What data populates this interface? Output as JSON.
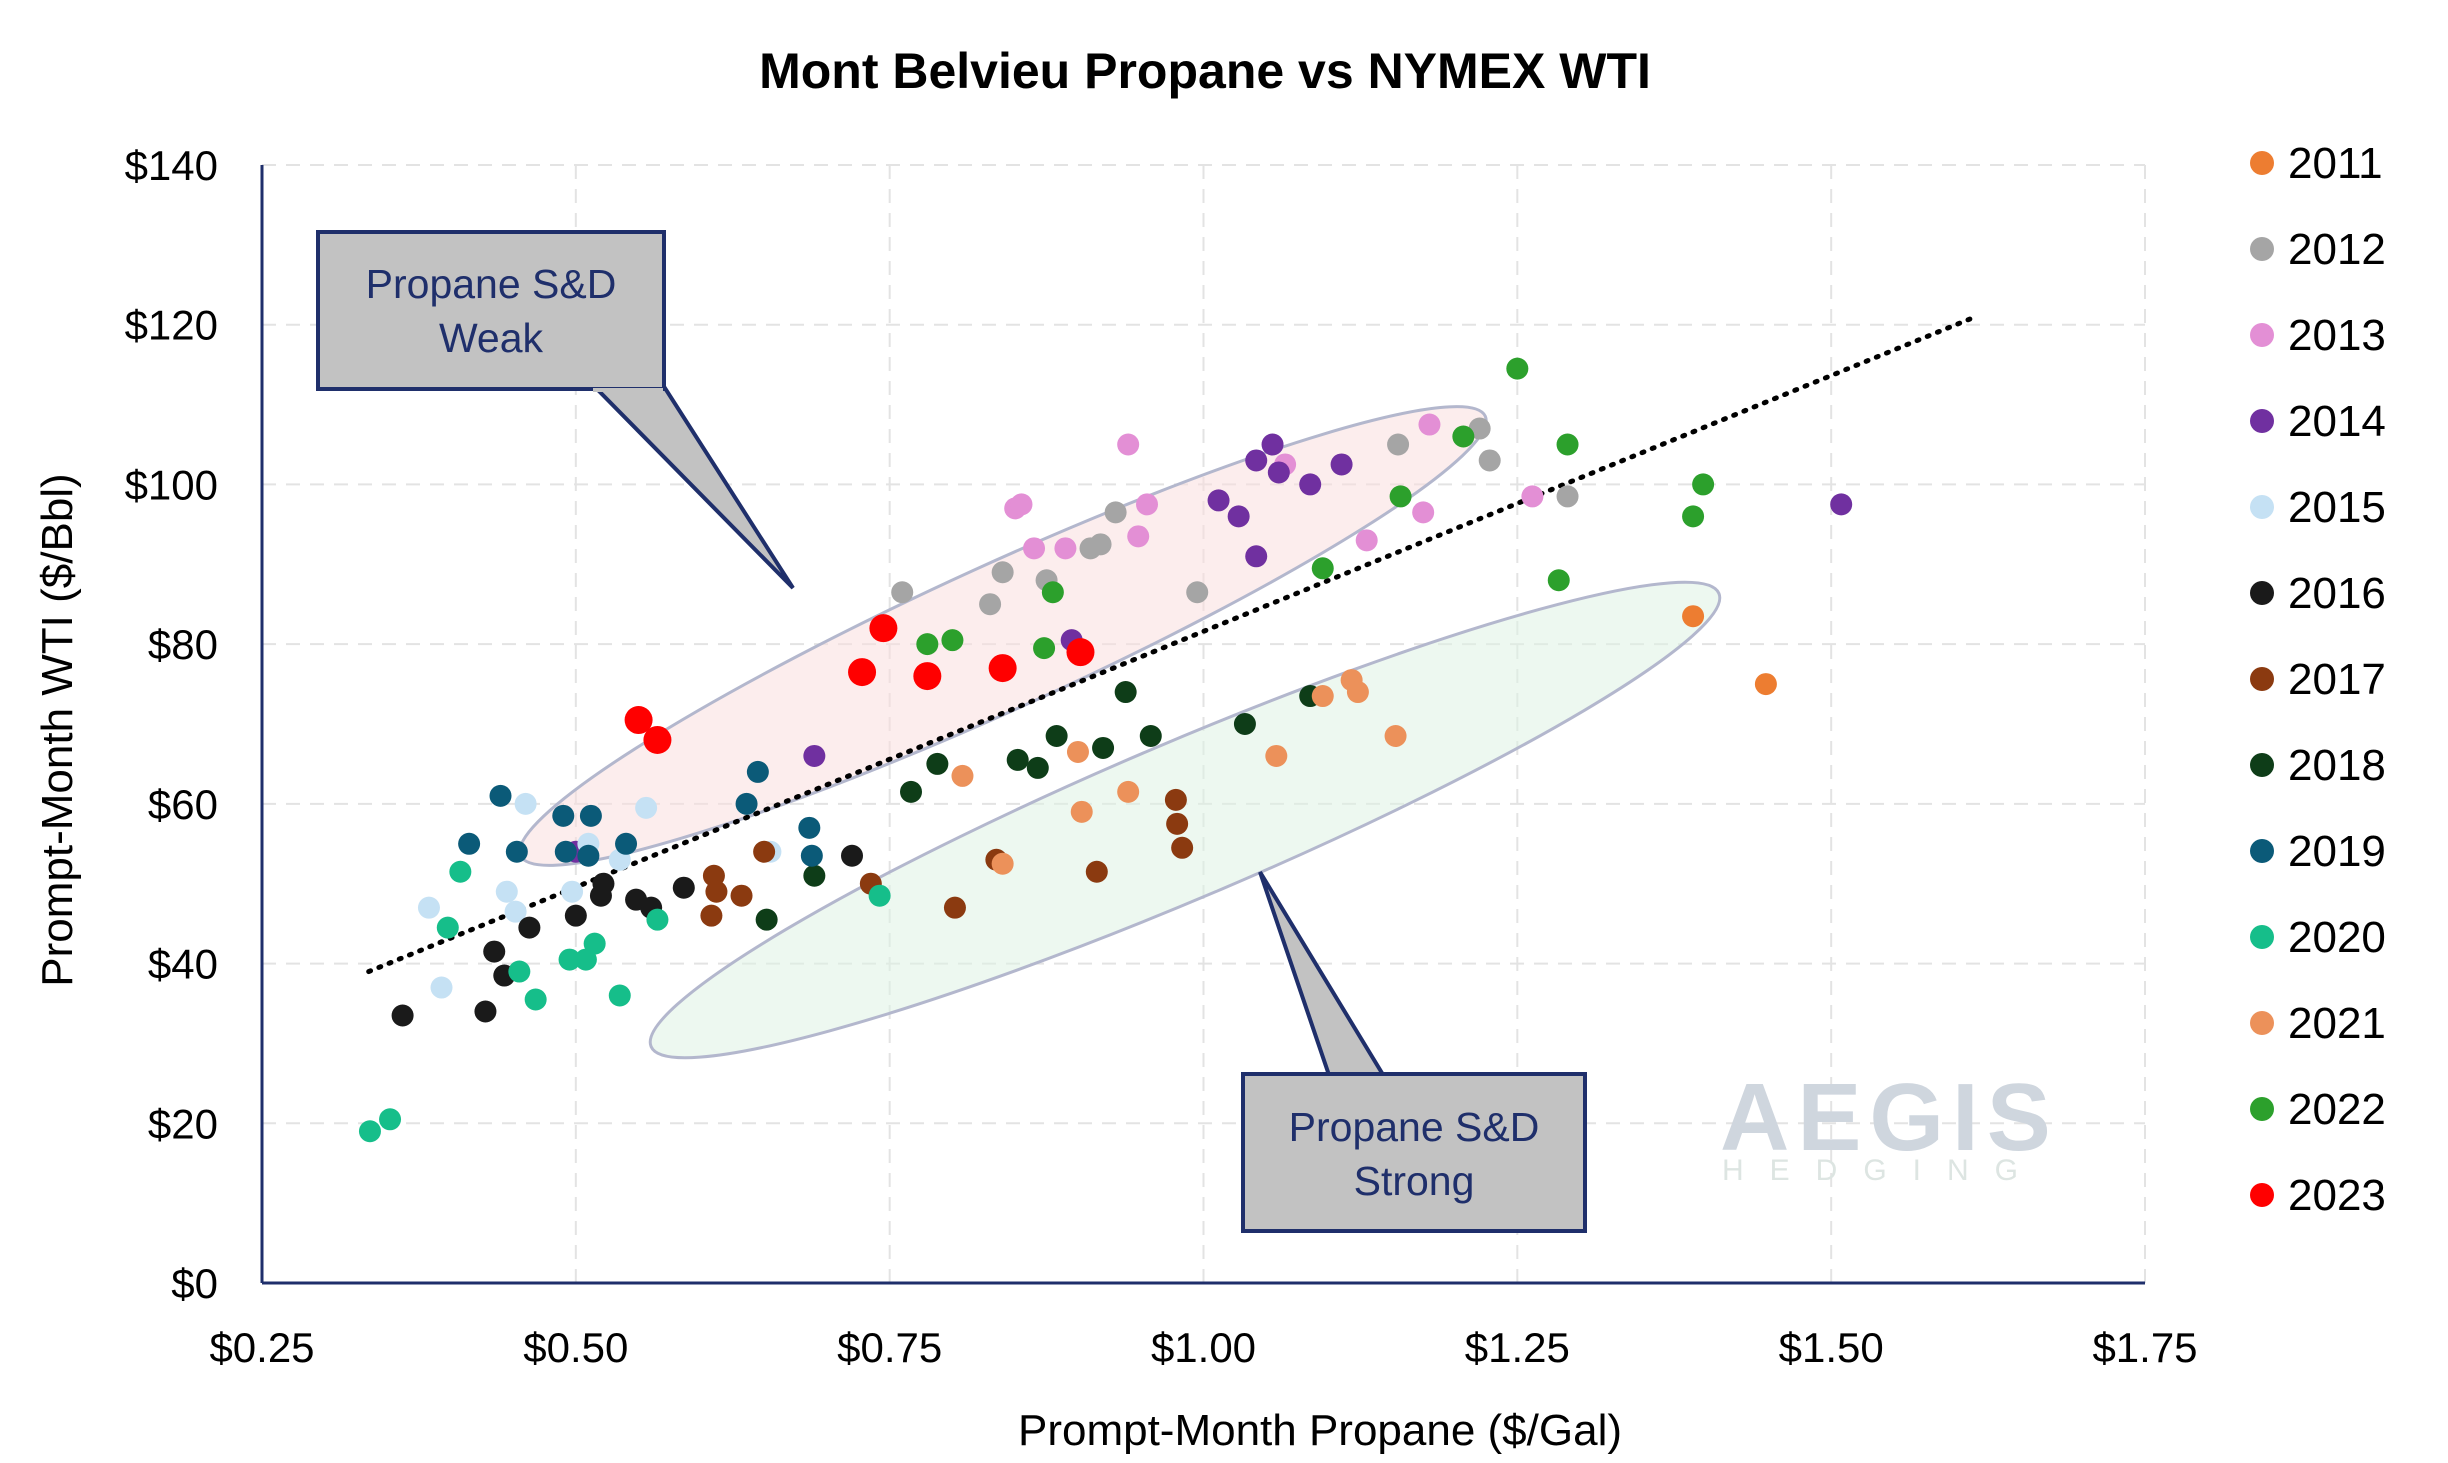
{
  "chart_data": {
    "type": "scatter",
    "title": "Mont Belvieu Propane vs NYMEX WTI",
    "xlabel": "Prompt-Month Propane ($/Gal)",
    "ylabel": "Prompt-Month WTI ($/Bbl)",
    "xlim": [
      0.25,
      1.75
    ],
    "ylim": [
      0,
      140
    ],
    "x_ticks": [
      "$0.25",
      "$0.50",
      "$0.75",
      "$1.00",
      "$1.25",
      "$1.50",
      "$1.75"
    ],
    "y_ticks": [
      "$0",
      "$20",
      "$40",
      "$60",
      "$80",
      "$100",
      "$120",
      "$140"
    ],
    "grid": true,
    "legend_position": "right",
    "trendline": {
      "style": "dotted",
      "from": [
        0.335,
        39
      ],
      "to": [
        1.615,
        121
      ]
    },
    "annotations": [
      {
        "text_lines": [
          "Propane S&D",
          "Weak"
        ],
        "color": "#f9dede"
      },
      {
        "text_lines": [
          "Propane S&D",
          "Strong"
        ],
        "color": "#def2e4"
      }
    ],
    "watermark": {
      "main": "AEGIS",
      "sub": "HEDGING"
    },
    "series": [
      {
        "name": "2011",
        "color": "#ed7d31",
        "points": [
          [
            1.39,
            83.5
          ],
          [
            1.448,
            75
          ]
        ]
      },
      {
        "name": "2012",
        "color": "#a5a5a5",
        "points": [
          [
            0.76,
            86.5
          ],
          [
            0.83,
            85
          ],
          [
            0.84,
            89
          ],
          [
            0.875,
            88
          ],
          [
            0.91,
            92
          ],
          [
            0.918,
            92.5
          ],
          [
            0.93,
            96.5
          ],
          [
            0.995,
            86.5
          ],
          [
            1.155,
            105
          ],
          [
            1.22,
            107
          ],
          [
            1.228,
            103
          ],
          [
            1.29,
            98.5
          ]
        ]
      },
      {
        "name": "2013",
        "color": "#e38fd5",
        "points": [
          [
            0.85,
            97
          ],
          [
            0.855,
            97.5
          ],
          [
            0.865,
            92
          ],
          [
            0.89,
            92
          ],
          [
            0.94,
            105
          ],
          [
            0.948,
            93.5
          ],
          [
            0.955,
            97.5
          ],
          [
            1.065,
            102.5
          ],
          [
            1.13,
            93
          ],
          [
            1.175,
            96.5
          ],
          [
            1.18,
            107.5
          ],
          [
            1.262,
            98.5
          ]
        ]
      },
      {
        "name": "2014",
        "color": "#7030a0",
        "points": [
          [
            0.5,
            54
          ],
          [
            0.69,
            66
          ],
          [
            0.895,
            80.5
          ],
          [
            1.012,
            98
          ],
          [
            1.028,
            96
          ],
          [
            1.042,
            91
          ],
          [
            1.042,
            103
          ],
          [
            1.055,
            105
          ],
          [
            1.06,
            101.5
          ],
          [
            1.085,
            100
          ],
          [
            1.11,
            102.5
          ],
          [
            1.508,
            97.5
          ]
        ]
      },
      {
        "name": "2015",
        "color": "#c5e1f4",
        "points": [
          [
            0.383,
            47
          ],
          [
            0.393,
            37
          ],
          [
            0.445,
            49
          ],
          [
            0.452,
            46.5
          ],
          [
            0.46,
            60
          ],
          [
            0.497,
            49
          ],
          [
            0.51,
            55
          ],
          [
            0.535,
            53
          ],
          [
            0.556,
            59.5
          ],
          [
            0.655,
            54
          ]
        ]
      },
      {
        "name": "2016",
        "color": "#1a1a1a",
        "points": [
          [
            0.362,
            33.5
          ],
          [
            0.428,
            34
          ],
          [
            0.435,
            41.5
          ],
          [
            0.443,
            38.5
          ],
          [
            0.463,
            44.5
          ],
          [
            0.5,
            46
          ],
          [
            0.52,
            48.5
          ],
          [
            0.522,
            50
          ],
          [
            0.548,
            48
          ],
          [
            0.56,
            47
          ],
          [
            0.586,
            49.5
          ],
          [
            0.72,
            53.5
          ]
        ]
      },
      {
        "name": "2017",
        "color": "#8b3a10",
        "points": [
          [
            0.608,
            46
          ],
          [
            0.61,
            51
          ],
          [
            0.612,
            49
          ],
          [
            0.632,
            48.5
          ],
          [
            0.65,
            54
          ],
          [
            0.735,
            50
          ],
          [
            0.802,
            47
          ],
          [
            0.835,
            53
          ],
          [
            0.915,
            51.5
          ],
          [
            0.978,
            60.5
          ],
          [
            0.979,
            57.5
          ],
          [
            0.983,
            54.5
          ]
        ]
      },
      {
        "name": "2018",
        "color": "#0e3d18",
        "points": [
          [
            0.652,
            45.5
          ],
          [
            0.69,
            51
          ],
          [
            0.767,
            61.5
          ],
          [
            0.788,
            65
          ],
          [
            0.852,
            65.5
          ],
          [
            0.868,
            64.5
          ],
          [
            0.883,
            68.5
          ],
          [
            0.92,
            67
          ],
          [
            0.938,
            74
          ],
          [
            0.958,
            68.5
          ],
          [
            1.033,
            70
          ],
          [
            1.085,
            73.5
          ]
        ]
      },
      {
        "name": "2019",
        "color": "#0b5a78",
        "points": [
          [
            0.415,
            55
          ],
          [
            0.44,
            61
          ],
          [
            0.453,
            54
          ],
          [
            0.49,
            58.5
          ],
          [
            0.492,
            54
          ],
          [
            0.51,
            53.5
          ],
          [
            0.512,
            58.5
          ],
          [
            0.54,
            55
          ],
          [
            0.636,
            60
          ],
          [
            0.645,
            64
          ],
          [
            0.686,
            57
          ],
          [
            0.688,
            53.5
          ]
        ]
      },
      {
        "name": "2020",
        "color": "#16be8a",
        "points": [
          [
            0.336,
            19
          ],
          [
            0.352,
            20.5
          ],
          [
            0.398,
            44.5
          ],
          [
            0.408,
            51.5
          ],
          [
            0.455,
            39
          ],
          [
            0.468,
            35.5
          ],
          [
            0.495,
            40.5
          ],
          [
            0.508,
            40.5
          ],
          [
            0.515,
            42.5
          ],
          [
            0.535,
            36
          ],
          [
            0.565,
            45.5
          ],
          [
            0.742,
            48.5
          ]
        ]
      },
      {
        "name": "2021",
        "color": "#ec915a",
        "points": [
          [
            0.808,
            63.5
          ],
          [
            0.84,
            52.5
          ],
          [
            0.9,
            66.5
          ],
          [
            0.903,
            59
          ],
          [
            0.94,
            61.5
          ],
          [
            1.058,
            66
          ],
          [
            1.095,
            73.5
          ],
          [
            1.118,
            75.5
          ],
          [
            1.123,
            74
          ],
          [
            1.153,
            68.5
          ]
        ]
      },
      {
        "name": "2022",
        "color": "#2ca02c",
        "points": [
          [
            0.78,
            80
          ],
          [
            0.8,
            80.5
          ],
          [
            0.873,
            79.5
          ],
          [
            0.88,
            86.5
          ],
          [
            1.095,
            89.5
          ],
          [
            1.157,
            98.5
          ],
          [
            1.207,
            106
          ],
          [
            1.25,
            114.5
          ],
          [
            1.283,
            88
          ],
          [
            1.29,
            105
          ],
          [
            1.39,
            96
          ],
          [
            1.398,
            100
          ]
        ]
      },
      {
        "name": "2023",
        "color": "#ff0000",
        "points": [
          [
            0.55,
            70.5
          ],
          [
            0.565,
            68
          ],
          [
            0.728,
            76.5
          ],
          [
            0.745,
            82
          ],
          [
            0.78,
            76
          ],
          [
            0.84,
            77
          ],
          [
            0.902,
            79
          ]
        ]
      }
    ]
  }
}
